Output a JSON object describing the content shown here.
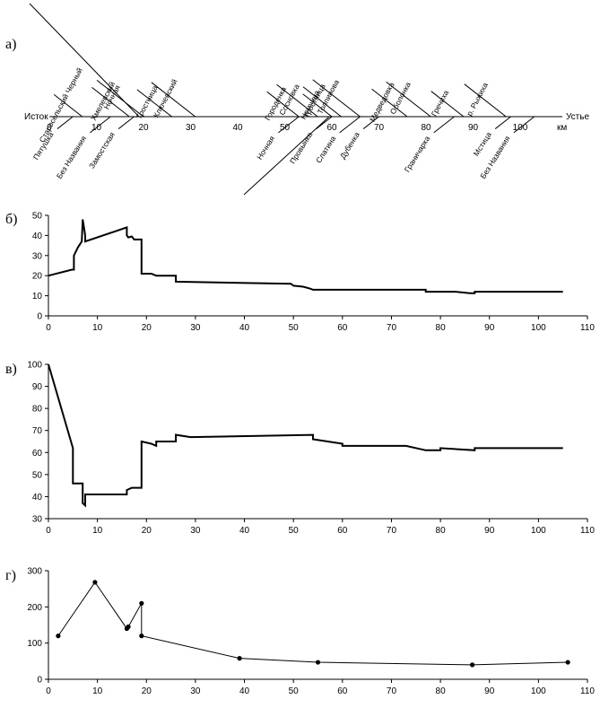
{
  "chart_data": [
    {
      "panel": "а)",
      "type": "schematic",
      "source_label": "Исток",
      "mouth_label": "Устье",
      "unit_label": "км",
      "x_ticks": [
        0,
        10,
        20,
        30,
        40,
        50,
        60,
        70,
        80,
        90,
        100
      ],
      "tributaries": [
        {
          "name": "Старосельский Черный",
          "km": 7,
          "side": "left"
        },
        {
          "name": "Хмелевский",
          "km": 17,
          "side": "left"
        },
        {
          "name": "Ночная",
          "km": 20,
          "side": "left"
        },
        {
          "name": "Тростница",
          "km": 26,
          "side": "left"
        },
        {
          "name": "Ключевский",
          "km": 31,
          "side": "left"
        },
        {
          "name": "Городенка",
          "km": 53,
          "side": "left"
        },
        {
          "name": "Сосновка",
          "km": 57,
          "side": "left"
        },
        {
          "name": "Немчина",
          "km": 60,
          "side": "left"
        },
        {
          "name": "Тростница",
          "km": 62,
          "side": "left"
        },
        {
          "name": "Толпинова",
          "km": 66,
          "side": "left"
        },
        {
          "name": "Медведовка",
          "km": 76,
          "side": "left"
        },
        {
          "name": "Оболонка",
          "km": 81,
          "side": "left"
        },
        {
          "name": "Гречиха",
          "km": 88,
          "side": "left"
        },
        {
          "name": "р. Рыжиха",
          "km": 97,
          "side": "left"
        },
        {
          "name": "Пятушка",
          "km": 5,
          "side": "right"
        },
        {
          "name": "Без Названия",
          "km": 13,
          "side": "right"
        },
        {
          "name": "Замостская",
          "km": 18,
          "side": "right"
        },
        {
          "name": "Ночная",
          "km": 53,
          "side": "right"
        },
        {
          "name": "Провынка",
          "km": 60,
          "side": "right"
        },
        {
          "name": "Слатина",
          "km": 66,
          "side": "right"
        },
        {
          "name": "Дубенка",
          "km": 70,
          "side": "right"
        },
        {
          "name": "Граничарка",
          "km": 86,
          "side": "right"
        },
        {
          "name": "Мстица",
          "km": 98,
          "side": "right"
        },
        {
          "name": "Без Названия",
          "km": 103,
          "side": "right"
        }
      ]
    },
    {
      "panel": "б)",
      "type": "line",
      "xlim": [
        0,
        110
      ],
      "ylim": [
        0,
        50
      ],
      "x_ticks": [
        0,
        10,
        20,
        30,
        40,
        50,
        60,
        70,
        80,
        90,
        100,
        110
      ],
      "y_ticks": [
        0,
        10,
        20,
        30,
        40,
        50
      ],
      "series": [
        {
          "points": [
            [
              0,
              20
            ],
            [
              4.8,
              23
            ],
            [
              5.2,
              23
            ],
            [
              5.2,
              30
            ],
            [
              6,
              34
            ],
            [
              6.8,
              37
            ],
            [
              7,
              48
            ],
            [
              7.2,
              45
            ],
            [
              7.5,
              40
            ],
            [
              7.5,
              37
            ],
            [
              16,
              44
            ],
            [
              16,
              40
            ],
            [
              16.3,
              39
            ],
            [
              17,
              39.5
            ],
            [
              17.5,
              38
            ],
            [
              19,
              38
            ],
            [
              19,
              21
            ],
            [
              21,
              21
            ],
            [
              22,
              20
            ],
            [
              26,
              20
            ],
            [
              26,
              17
            ],
            [
              49.5,
              16
            ],
            [
              50,
              15
            ],
            [
              52,
              14.5
            ],
            [
              53.5,
              13.5
            ],
            [
              54,
              13
            ],
            [
              77,
              13
            ],
            [
              77,
              12
            ],
            [
              83,
              12
            ],
            [
              86,
              11.3
            ],
            [
              87,
              11.3
            ],
            [
              87,
              12
            ],
            [
              105,
              12
            ]
          ]
        }
      ]
    },
    {
      "panel": "в)",
      "type": "line",
      "xlim": [
        0,
        110
      ],
      "ylim": [
        30,
        100
      ],
      "x_ticks": [
        0,
        10,
        20,
        30,
        40,
        50,
        60,
        70,
        80,
        90,
        100,
        110
      ],
      "y_ticks": [
        30,
        40,
        50,
        60,
        70,
        80,
        90,
        100
      ],
      "series": [
        {
          "points": [
            [
              0,
              100
            ],
            [
              5,
              62
            ],
            [
              5,
              46
            ],
            [
              7,
              46
            ],
            [
              7,
              37
            ],
            [
              7.5,
              36
            ],
            [
              7.5,
              41
            ],
            [
              16,
              41
            ],
            [
              16,
              43
            ],
            [
              17,
              44
            ],
            [
              19,
              44
            ],
            [
              19,
              65
            ],
            [
              21,
              64
            ],
            [
              22,
              63
            ],
            [
              22,
              65
            ],
            [
              26,
              65
            ],
            [
              26,
              68
            ],
            [
              29,
              67
            ],
            [
              54,
              68
            ],
            [
              54,
              66
            ],
            [
              57,
              65
            ],
            [
              60,
              64
            ],
            [
              60,
              63
            ],
            [
              73,
              63
            ],
            [
              77,
              61
            ],
            [
              80,
              61
            ],
            [
              80,
              62
            ],
            [
              87,
              61
            ],
            [
              87,
              62
            ],
            [
              105,
              62
            ]
          ]
        }
      ]
    },
    {
      "panel": "г)",
      "type": "scatter-line",
      "xlim": [
        0,
        110
      ],
      "ylim": [
        0,
        300
      ],
      "x_ticks": [
        0,
        10,
        20,
        30,
        40,
        50,
        60,
        70,
        80,
        90,
        100,
        110
      ],
      "y_ticks": [
        0,
        100,
        200,
        300
      ],
      "series": [
        {
          "points": [
            [
              2,
              120
            ],
            [
              9.5,
              268
            ],
            [
              16,
              140
            ],
            [
              16.3,
              145
            ],
            [
              19,
              210
            ],
            [
              19,
              120
            ],
            [
              39,
              58
            ],
            [
              55,
              47
            ],
            [
              86.5,
              40
            ],
            [
              106,
              47
            ]
          ]
        }
      ]
    }
  ]
}
